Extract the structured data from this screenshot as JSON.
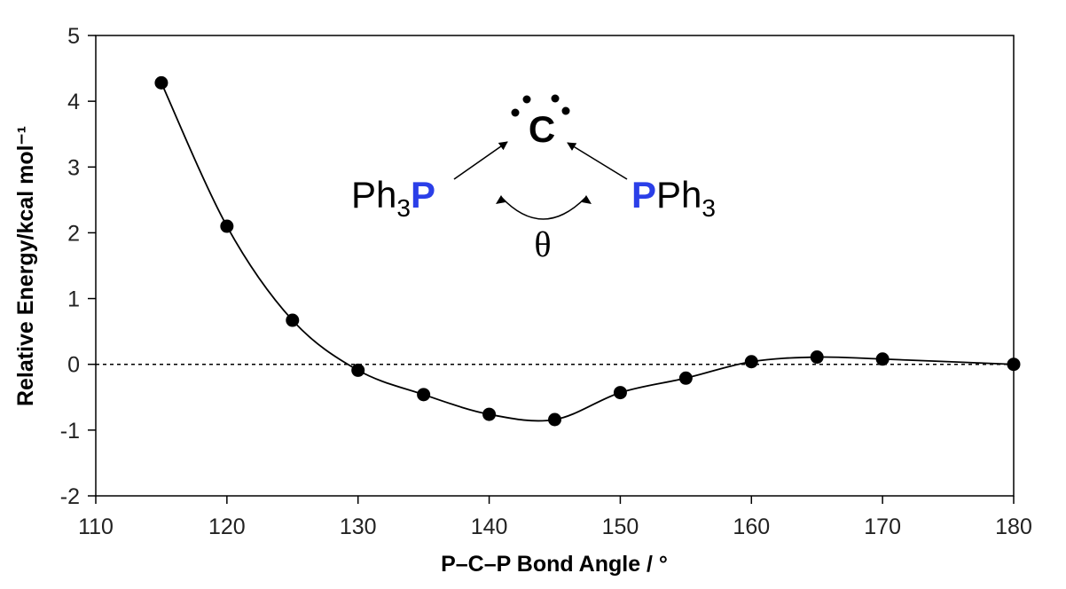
{
  "chart_data": {
    "type": "scatter",
    "title": "",
    "xlabel": "P–C–P Bond Angle / °",
    "ylabel": "Relative Energy/kcal mol⁻¹",
    "xlim": [
      110,
      180
    ],
    "ylim": [
      -2,
      5
    ],
    "x_ticks": [
      "110",
      "120",
      "130",
      "140",
      "150",
      "160",
      "170",
      "180"
    ],
    "y_ticks": [
      "5",
      "4",
      "3",
      "2",
      "1",
      "0",
      "-1",
      "-2"
    ],
    "reference_line": {
      "y": 0,
      "style": "dashed"
    },
    "fit_curve": "smooth",
    "grid": false,
    "series": [
      {
        "x": [
          115,
          120,
          125,
          130,
          135,
          140,
          145,
          150,
          155,
          160,
          165,
          170,
          180
        ],
        "y": [
          4.28,
          2.1,
          0.67,
          -0.09,
          -0.46,
          -0.76,
          -0.84,
          -0.43,
          -0.21,
          0.04,
          0.11,
          0.08,
          0.0
        ]
      }
    ],
    "inset_structure": {
      "central_atom": "C",
      "left_ligand_prefix": "Ph",
      "left_ligand_subscript": "3",
      "left_ligand_atom": "P",
      "right_ligand_atom": "P",
      "right_ligand_suffix": "Ph",
      "right_ligand_subscript": "3",
      "angle_symbol": "θ",
      "atom_color": "#2b3fe8"
    }
  }
}
